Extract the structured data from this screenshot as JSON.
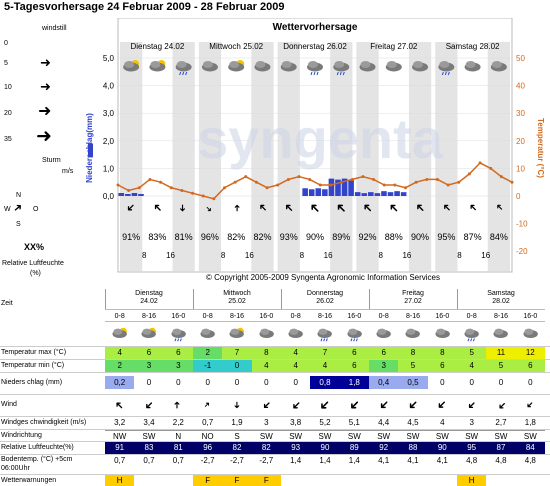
{
  "title": "5-Tagesvorhersage 24 Februar 2009 - 28 Februar 2009",
  "legend": {
    "windstill": "windstill",
    "sturm": "Sturm",
    "unit": "m/s",
    "levels": [
      "0",
      "5",
      "10",
      "20",
      "35"
    ],
    "compass": {
      "n": "N",
      "w": "W",
      "o": "O",
      "s": "S"
    },
    "humidity_label": "XX%",
    "humidity_desc": "Relative Luftfeuchte",
    "humidity_unit": "(%)"
  },
  "chart": {
    "heading": "Wettervorhersage",
    "days": [
      "Dienstag 24.02",
      "Mittwoch 25.02",
      "Donnerstag 26.02",
      "Freitag 27.02",
      "Samstag 28.02"
    ],
    "y_left_label": "Niederschlag(mm)",
    "y_right_label": "Temperatur (°C)",
    "y_left_ticks": [
      "0,0",
      "1,0",
      "2,0",
      "3,0",
      "4,0",
      "5,0"
    ],
    "y_right_ticks": [
      "0",
      "10",
      "20",
      "30",
      "40",
      "50"
    ],
    "y_right_neg": [
      "-10",
      "-20"
    ],
    "hour_ticks": [
      "8",
      "16",
      "8",
      "16",
      "8",
      "16",
      "8",
      "16",
      "8",
      "16"
    ],
    "humidity_values": [
      "91%",
      "83%",
      "81%",
      "96%",
      "82%",
      "82%",
      "93%",
      "90%",
      "89%",
      "92%",
      "88%",
      "90%",
      "95%",
      "87%",
      "84%"
    ],
    "copyright": "© Copyright 2005-2009 Syngenta Agronomic Information Services",
    "watermark": "syngenta"
  },
  "chart_data": {
    "type": "line",
    "x_labels": [
      "8",
      "16",
      "8",
      "16",
      "8",
      "16",
      "8",
      "16",
      "8",
      "16"
    ],
    "series": [
      {
        "name": "Temperatur (°C)",
        "values": [
          4,
          2,
          3,
          6,
          5,
          3,
          2,
          1,
          0,
          -1,
          3,
          5,
          7,
          5,
          3,
          4,
          6,
          7,
          6,
          4,
          4,
          5,
          6,
          7,
          6,
          4,
          4,
          3,
          5,
          6,
          6,
          4,
          5,
          8,
          12,
          10,
          7,
          5
        ]
      },
      {
        "name": "Niederschlag(mm)",
        "type": "bar",
        "values": [
          0.2,
          0,
          0,
          0,
          0,
          0,
          0,
          0.8,
          1.8,
          0.4,
          0.5,
          0,
          0,
          0,
          0
        ]
      }
    ],
    "y_left_range": [
      0,
      5
    ],
    "y_right_range": [
      -20,
      50
    ]
  },
  "table": {
    "zeit": "Zeit",
    "days": [
      {
        "name": "Dienstag",
        "date": "24.02"
      },
      {
        "name": "Mittwoch",
        "date": "25.02"
      },
      {
        "name": "Donnerstag",
        "date": "26.02"
      },
      {
        "name": "Freitag",
        "date": "27.02"
      },
      {
        "name": "Samstag",
        "date": "28.02"
      }
    ],
    "periods": [
      "0-8",
      "8-16",
      "16-0",
      "0-8",
      "8-16",
      "16-0",
      "0-8",
      "8-16",
      "16-0",
      "0-8",
      "8-16",
      "16-0",
      "0-8",
      "8-16",
      "16-0"
    ],
    "rows": {
      "tmax": {
        "label": "Temperatur max (°C)",
        "values": [
          "4",
          "6",
          "6",
          "2",
          "7",
          "8",
          "4",
          "7",
          "6",
          "6",
          "8",
          "8",
          "5",
          "11",
          "12"
        ]
      },
      "tmin": {
        "label": "Temperatur min (°C)",
        "values": [
          "2",
          "3",
          "3",
          "-1",
          "0",
          "4",
          "4",
          "4",
          "6",
          "3",
          "5",
          "6",
          "4",
          "5",
          "6"
        ]
      },
      "rain": {
        "label": "Nieders chlag (mm)",
        "values": [
          "0,2",
          "0",
          "0",
          "0",
          "0",
          "0",
          "0",
          "0,8",
          "1,8",
          "0,4",
          "0,5",
          "0",
          "0",
          "0",
          "0"
        ]
      },
      "wind": {
        "label": "Wind"
      },
      "speed": {
        "label": "Windges chwindigkeit (m/s)",
        "values": [
          "3,2",
          "3,4",
          "2,2",
          "0,7",
          "1,9",
          "3",
          "3,8",
          "5,2",
          "5,1",
          "4,4",
          "4,5",
          "4",
          "3",
          "2,7",
          "1,8"
        ]
      },
      "dir": {
        "label": "Windrichtung",
        "values": [
          "NW",
          "SW",
          "N",
          "NO",
          "S",
          "SW",
          "SW",
          "SW",
          "SW",
          "SW",
          "SW",
          "SW",
          "SW",
          "SW",
          "SW"
        ]
      },
      "hum": {
        "label": "Relative Luftfeuchte(%)",
        "values": [
          "91",
          "83",
          "81",
          "96",
          "82",
          "82",
          "93",
          "90",
          "89",
          "92",
          "88",
          "90",
          "95",
          "87",
          "84"
        ]
      },
      "soil": {
        "label": "Bodentemp. (°C) +5cm",
        "label2": "06:00Uhr",
        "values": [
          "0,7",
          "0,7",
          "0,7",
          "-2,7",
          "-2,7",
          "-2,7",
          "1,4",
          "1,4",
          "1,4",
          "4,1",
          "4,1",
          "4,1",
          "4,8",
          "4,8",
          "4,8"
        ]
      },
      "warn": {
        "label": "Wetterwarnungen",
        "values": [
          "H",
          "",
          "",
          "F",
          "F",
          "F",
          "",
          "",
          "",
          "",
          "",
          "",
          "H",
          "",
          ""
        ]
      }
    }
  },
  "colors": {
    "temp_line": "#d2691e",
    "rain_bar": "#3344cc",
    "hum_row": "#000066",
    "warn_cell": "#ffcc00",
    "day_band": "#d8d8d8"
  }
}
